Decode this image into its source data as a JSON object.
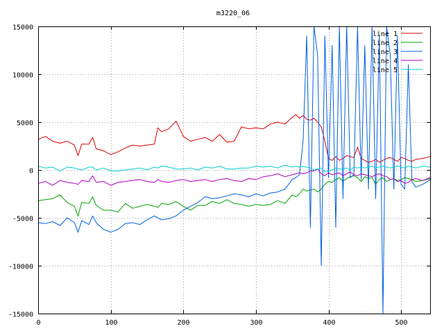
{
  "chart_data": {
    "type": "line",
    "title": "m3220_06",
    "xlabel": "",
    "ylabel": "",
    "xlim": [
      0,
      540
    ],
    "ylim": [
      -15000,
      15000
    ],
    "xticks": [
      0,
      100,
      200,
      300,
      400,
      500
    ],
    "yticks": [
      -15000,
      -10000,
      -5000,
      0,
      5000,
      10000,
      15000
    ],
    "grid": true,
    "legend_position": "top-right",
    "x": [
      0,
      10,
      20,
      30,
      40,
      50,
      55,
      60,
      70,
      75,
      80,
      90,
      100,
      110,
      120,
      130,
      140,
      150,
      160,
      165,
      170,
      180,
      190,
      200,
      210,
      220,
      230,
      240,
      250,
      260,
      270,
      280,
      290,
      300,
      310,
      320,
      330,
      340,
      350,
      355,
      360,
      365,
      370,
      375,
      380,
      385,
      390,
      395,
      400,
      405,
      410,
      415,
      420,
      425,
      430,
      435,
      440,
      445,
      450,
      455,
      460,
      465,
      470,
      475,
      480,
      485,
      490,
      495,
      500,
      505,
      510,
      515,
      520,
      530,
      540
    ],
    "series": [
      {
        "name": "line 1",
        "color": "#e00000",
        "values": [
          3200,
          3500,
          3000,
          2800,
          3000,
          2600,
          1500,
          2700,
          2700,
          3400,
          2200,
          2000,
          1600,
          1900,
          2300,
          2600,
          2500,
          2600,
          2700,
          4400,
          4000,
          4300,
          5100,
          3500,
          3000,
          3200,
          3400,
          3000,
          3700,
          2900,
          3000,
          4500,
          4300,
          4400,
          4300,
          4800,
          5000,
          4800,
          5500,
          5800,
          5400,
          5700,
          5300,
          5200,
          5400,
          5000,
          4500,
          3000,
          1200,
          1000,
          1400,
          1000,
          1200,
          1500,
          1400,
          1300,
          2400,
          1200,
          1000,
          800,
          900,
          1100,
          800,
          1000,
          1200,
          1300,
          1100,
          900,
          1300,
          1200,
          1000,
          900,
          1100,
          1200,
          1400
        ]
      },
      {
        "name": "line 2",
        "color": "#00a000",
        "values": [
          -3200,
          -3100,
          -3000,
          -2600,
          -3400,
          -3800,
          -4800,
          -3400,
          -3500,
          -2800,
          -3700,
          -4200,
          -4200,
          -4400,
          -3500,
          -4000,
          -3800,
          -3600,
          -3800,
          -3900,
          -3500,
          -3600,
          -3300,
          -3800,
          -4200,
          -3700,
          -3700,
          -3300,
          -3500,
          -3100,
          -3500,
          -3600,
          -3800,
          -3600,
          -3700,
          -3600,
          -3200,
          -3500,
          -2600,
          -2800,
          -2500,
          -2000,
          -2200,
          -2100,
          -2000,
          -2300,
          -2000,
          -1500,
          -1200,
          -1300,
          -1000,
          -800,
          -1200,
          -900,
          -700,
          -600,
          -800,
          -1200,
          -700,
          -900,
          -800,
          -1500,
          -1000,
          -800,
          -1200,
          -1000,
          -900,
          -1100,
          -1000,
          -800,
          -900,
          -1000,
          -1200,
          -1100,
          -900
        ]
      },
      {
        "name": "line 3",
        "color": "#0060e0",
        "values": [
          -5500,
          -5600,
          -5400,
          -5800,
          -5000,
          -5500,
          -6500,
          -5300,
          -5700,
          -4800,
          -5500,
          -6200,
          -6500,
          -6200,
          -5600,
          -5500,
          -5700,
          -5200,
          -4800,
          -5000,
          -5200,
          -5100,
          -4800,
          -4200,
          -3800,
          -3400,
          -2800,
          -3000,
          -2900,
          -2700,
          -2500,
          -2600,
          -2800,
          -2500,
          -2700,
          -2400,
          -2300,
          -2000,
          -1000,
          -800,
          -500,
          3000,
          14000,
          -6000,
          15000,
          12000,
          -10000,
          14000,
          -800,
          13000,
          -6000,
          15000,
          -3000,
          15000,
          -800,
          -500,
          15000,
          -1000,
          13000,
          -2000,
          15000,
          -3000,
          14000,
          -15000,
          15000,
          12000,
          -2000,
          14000,
          -1500,
          -2000,
          11000,
          -1200,
          -1800,
          -1500,
          -1000
        ]
      },
      {
        "name": "line 4",
        "color": "#b000c0",
        "values": [
          -1400,
          -1200,
          -1600,
          -1100,
          -1300,
          -1400,
          -1500,
          -1100,
          -1200,
          -600,
          -1300,
          -1200,
          -1600,
          -1300,
          -1200,
          -1100,
          -1000,
          -1200,
          -1300,
          -1000,
          -1200,
          -1300,
          -1100,
          -1000,
          -1200,
          -1100,
          -1000,
          -1200,
          -1000,
          -900,
          -1100,
          -1200,
          -900,
          -1000,
          -700,
          -600,
          -400,
          -700,
          -500,
          -400,
          -300,
          -400,
          -300,
          -100,
          -100,
          100,
          -400,
          -600,
          -300,
          -500,
          -400,
          -300,
          -600,
          -400,
          -200,
          -500,
          -600,
          -400,
          -500,
          -600,
          -700,
          -500,
          -400,
          -600,
          -700,
          -1000,
          -900,
          -1200,
          -1100,
          -1400,
          -1300,
          -1000,
          -900,
          -1100,
          -800
        ]
      },
      {
        "name": "line 5",
        "color": "#00d0d0",
        "values": [
          400,
          200,
          300,
          -100,
          300,
          200,
          100,
          0,
          300,
          300,
          0,
          200,
          -100,
          -100,
          0,
          100,
          200,
          0,
          300,
          200,
          400,
          300,
          100,
          100,
          200,
          0,
          300,
          200,
          400,
          100,
          100,
          200,
          200,
          400,
          300,
          400,
          200,
          500,
          300,
          400,
          300,
          400,
          300,
          200,
          0,
          100,
          200,
          -200,
          -100,
          0,
          200,
          100,
          100,
          200,
          0,
          300,
          200,
          300,
          200,
          300,
          400,
          200,
          300,
          400,
          300,
          200,
          300,
          400,
          300,
          200,
          400,
          300,
          200,
          400,
          300
        ]
      }
    ]
  }
}
